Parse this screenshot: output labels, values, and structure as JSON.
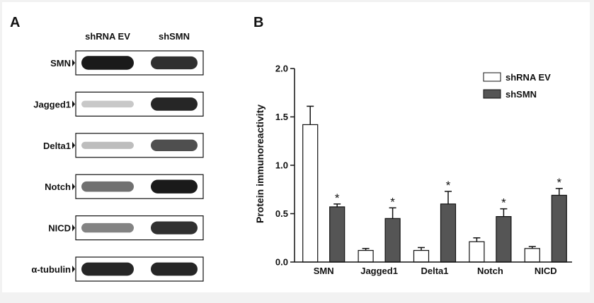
{
  "colors": {
    "page_bg": "#f2f2f2",
    "panel_bg": "#ffffff",
    "band": "#111111",
    "bar_ev": "#ffffff",
    "bar_shsmn": "#555555",
    "axis": "#111111"
  },
  "panel_a": {
    "label": "A",
    "col_headers": [
      "shRNA EV",
      "shSMN"
    ],
    "rows": [
      {
        "label": "SMN",
        "ev_intensity": 0.95,
        "smn_intensity": 0.85
      },
      {
        "label": "Jagged1",
        "ev_intensity": 0.12,
        "smn_intensity": 0.9
      },
      {
        "label": "Delta1",
        "ev_intensity": 0.18,
        "smn_intensity": 0.7
      },
      {
        "label": "Notch",
        "ev_intensity": 0.55,
        "smn_intensity": 0.95
      },
      {
        "label": "NICD",
        "ev_intensity": 0.45,
        "smn_intensity": 0.85
      },
      {
        "label": "α-tubulin",
        "ev_intensity": 0.9,
        "smn_intensity": 0.9
      }
    ]
  },
  "panel_b": {
    "label": "B",
    "chart_data": {
      "type": "bar",
      "title": "",
      "xlabel": "",
      "ylabel": "Protein immunoreactivity",
      "ylim": [
        0,
        2.0
      ],
      "yticks": [
        "0.0",
        "0.5",
        "1.0",
        "1.5",
        "2.0"
      ],
      "categories": [
        "SMN",
        "Jagged1",
        "Delta1",
        "Notch",
        "NICD"
      ],
      "series": [
        {
          "name": "shRNA EV",
          "values": [
            1.42,
            0.12,
            0.12,
            0.21,
            0.14
          ],
          "errors": [
            0.19,
            0.02,
            0.03,
            0.04,
            0.02
          ]
        },
        {
          "name": "shSMN",
          "values": [
            0.57,
            0.45,
            0.6,
            0.47,
            0.69
          ],
          "errors": [
            0.03,
            0.11,
            0.13,
            0.08,
            0.07
          ]
        }
      ],
      "significance_marker": "*",
      "legend_position": "top-right"
    }
  }
}
